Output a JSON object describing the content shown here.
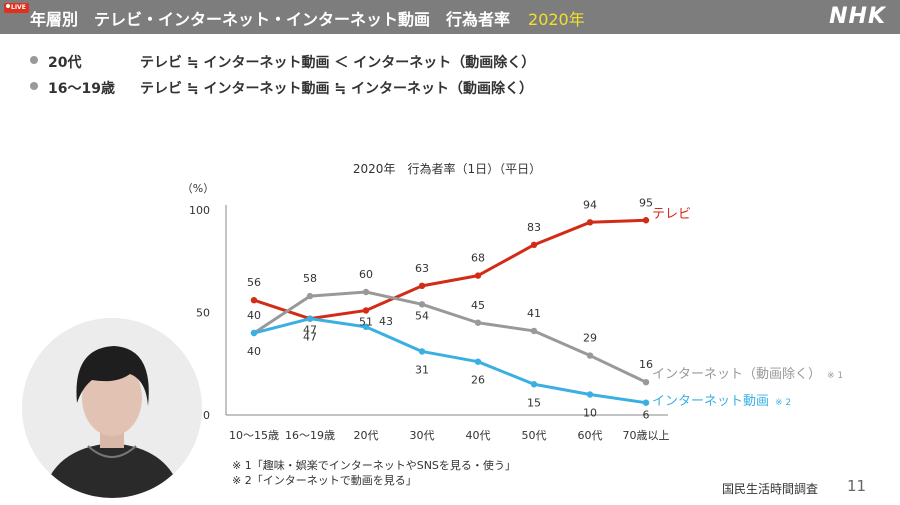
{
  "header": {
    "live_badge": "LIVE",
    "title": "年層別　テレビ・インターネット・インターネット動画　行為者率",
    "year": "2020年",
    "logo": "NHK",
    "colors": {
      "bar": "#7d7d7d",
      "year": "#f0e12a"
    }
  },
  "summary": [
    {
      "label": "20代",
      "text": "テレビ ≒ インターネット動画 ＜ インターネット（動画除く）"
    },
    {
      "label": "16〜19歳",
      "text": "テレビ ≒ インターネット動画 ≒ インターネット（動画除く）"
    }
  ],
  "chart_data": {
    "type": "line",
    "title": "2020年　行為者率（1日）（平日）",
    "ylabel": "（%）",
    "ylim": [
      0,
      100
    ],
    "yticks": [
      0,
      50,
      100
    ],
    "categories": [
      "10〜15歳",
      "16〜19歳",
      "20代",
      "30代",
      "40代",
      "50代",
      "60代",
      "70歳以上"
    ],
    "series": [
      {
        "name": "テレビ",
        "values": [
          56,
          47,
          51,
          63,
          68,
          83,
          94,
          95
        ],
        "color": "#d22b16"
      },
      {
        "name": "インターネット（動画除く）",
        "note": "※ 1",
        "values": [
          40,
          58,
          60,
          54,
          45,
          41,
          29,
          16
        ],
        "color": "#999999"
      },
      {
        "name": "インターネット動画",
        "note": "※ 2",
        "values": [
          40,
          47,
          43,
          31,
          26,
          15,
          10,
          6
        ],
        "color": "#3ab0e2"
      }
    ],
    "data_labels": [
      {
        "series": 0,
        "index": 0,
        "text": "56"
      },
      {
        "series": 0,
        "index": 1,
        "text": "47"
      },
      {
        "series": 0,
        "index": 2,
        "text": "51"
      },
      {
        "series": 0,
        "index": 3,
        "text": "63"
      },
      {
        "series": 0,
        "index": 4,
        "text": "68"
      },
      {
        "series": 0,
        "index": 5,
        "text": "83"
      },
      {
        "series": 0,
        "index": 6,
        "text": "94"
      },
      {
        "series": 0,
        "index": 7,
        "text": "95"
      },
      {
        "series": 1,
        "index": 0,
        "text": "40"
      },
      {
        "series": 1,
        "index": 1,
        "text": "58"
      },
      {
        "series": 1,
        "index": 2,
        "text": "60"
      },
      {
        "series": 1,
        "index": 3,
        "text": "54"
      },
      {
        "series": 1,
        "index": 4,
        "text": "45"
      },
      {
        "series": 1,
        "index": 5,
        "text": "41"
      },
      {
        "series": 1,
        "index": 6,
        "text": "29"
      },
      {
        "series": 1,
        "index": 7,
        "text": "16"
      },
      {
        "series": 2,
        "index": 0,
        "text": "40"
      },
      {
        "series": 2,
        "index": 1,
        "text": "47"
      },
      {
        "series": 2,
        "index": 2,
        "text": "43"
      },
      {
        "series": 2,
        "index": 3,
        "text": "31"
      },
      {
        "series": 2,
        "index": 4,
        "text": "26"
      },
      {
        "series": 2,
        "index": 5,
        "text": "15"
      },
      {
        "series": 2,
        "index": 6,
        "text": "10"
      },
      {
        "series": 2,
        "index": 7,
        "text": "6"
      }
    ]
  },
  "notes": [
    "※ 1「趣味・娯楽でインターネットやSNSを見る・使う」",
    "※ 2「インターネットで動画を見る」"
  ],
  "source": "国民生活時間調査",
  "page_number": "11"
}
